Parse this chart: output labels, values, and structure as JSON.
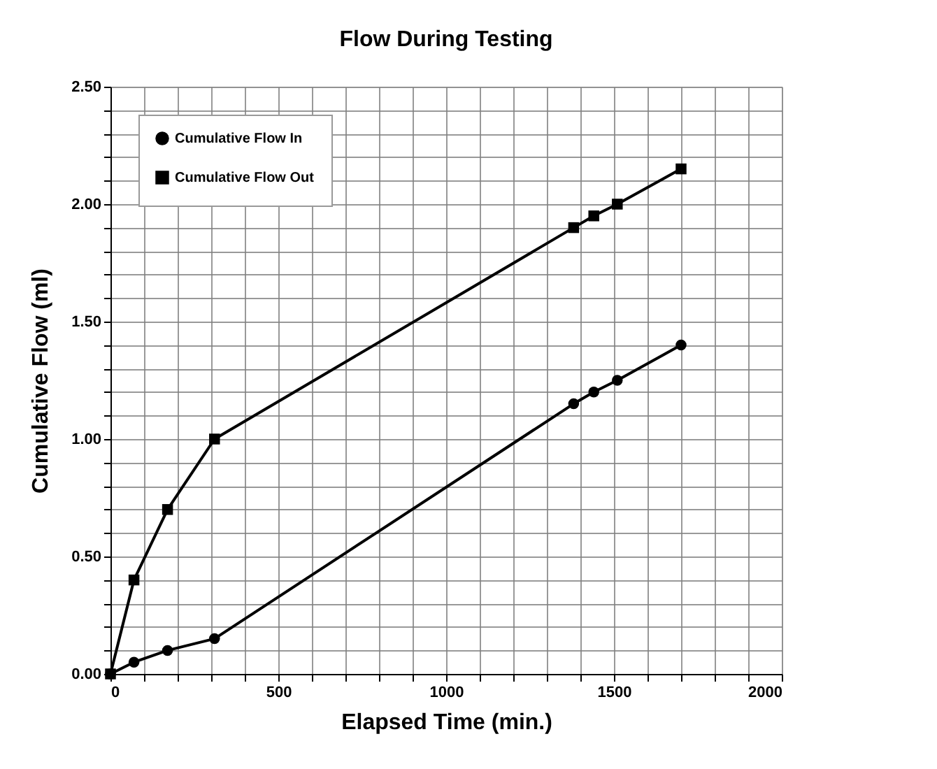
{
  "chart_data": {
    "type": "line",
    "title": "Flow During Testing",
    "xlabel": "Elapsed Time (min.)",
    "ylabel": "Cumulative Flow (ml)",
    "x": [
      0,
      70,
      170,
      310,
      1380,
      1440,
      1510,
      1700
    ],
    "series": [
      {
        "name": "Cumulative Flow In",
        "color": "#000000",
        "marker": "circle",
        "values": [
          0,
          0.05,
          0.1,
          0.15,
          1.15,
          1.2,
          1.25,
          1.4
        ]
      },
      {
        "name": "Cumulative Flow Out",
        "color": "#000000",
        "marker": "square",
        "values": [
          0,
          0.4,
          0.7,
          1.0,
          1.9,
          1.95,
          2.0,
          2.15
        ]
      }
    ],
    "xlim": [
      0,
      2000
    ],
    "xticks": [
      0,
      {
        "value": 100,
        "label": null
      },
      {
        "value": 200,
        "label": null
      },
      {
        "value": 300,
        "label": null
      },
      {
        "value": 400,
        "label": null
      },
      500,
      {
        "value": 600,
        "label": null
      },
      {
        "value": 700,
        "label": null
      },
      {
        "value": 800,
        "label": null
      },
      {
        "value": 900,
        "label": null
      },
      1000,
      {
        "value": 1100,
        "label": null
      },
      {
        "value": 1200,
        "label": null
      },
      {
        "value": 1300,
        "label": null
      },
      {
        "value": 1400,
        "label": null
      },
      1500,
      {
        "value": 1600,
        "label": null
      },
      {
        "value": 1700,
        "label": null
      },
      {
        "value": 1800,
        "label": null
      },
      {
        "value": 1900,
        "label": null
      },
      2000
    ],
    "ylim": [
      0,
      2.5
    ],
    "yticks": [
      {
        "value": 0,
        "label": "0.00"
      },
      {
        "value": 0.1,
        "label": null
      },
      {
        "value": 0.2,
        "label": null
      },
      {
        "value": 0.3,
        "label": null
      },
      {
        "value": 0.4,
        "label": null
      },
      {
        "value": 0.5,
        "label": "0.50"
      },
      {
        "value": 0.6,
        "label": null
      },
      {
        "value": 0.7,
        "label": null
      },
      {
        "value": 0.8,
        "label": null
      },
      {
        "value": 0.9,
        "label": null
      },
      {
        "value": 1.0,
        "label": "1.00"
      },
      {
        "value": 1.1,
        "label": null
      },
      {
        "value": 1.2,
        "label": null
      },
      {
        "value": 1.3,
        "label": null
      },
      {
        "value": 1.4,
        "label": null
      },
      {
        "value": 1.5,
        "label": "1.50"
      },
      {
        "value": 1.6,
        "label": null
      },
      {
        "value": 1.7,
        "label": null
      },
      {
        "value": 1.8,
        "label": null
      },
      {
        "value": 1.9,
        "label": null
      },
      {
        "value": 2.0,
        "label": "2.00"
      },
      {
        "value": 2.1,
        "label": null
      },
      {
        "value": 2.2,
        "label": null
      },
      {
        "value": 2.3,
        "label": null
      },
      {
        "value": 2.4,
        "label": null
      },
      {
        "value": 2.5,
        "label": "2.50"
      }
    ],
    "grid": true,
    "legend": "top left",
    "line_style": "solid"
  }
}
